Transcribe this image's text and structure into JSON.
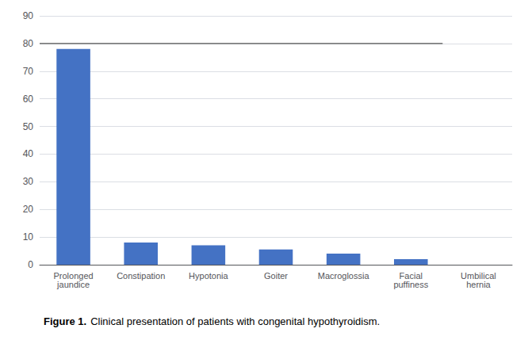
{
  "chart_data": {
    "type": "bar",
    "title": "Figure 1.",
    "subtitle": "Clinical presentation of patients with congenital hypothyroidism.",
    "categories": [
      "Prolonged\njaundice",
      "Constipation",
      "Hypotonia",
      "Goiter",
      "Macroglossia",
      "Facial\npuffiness",
      "Umbilical\nhernia"
    ],
    "values": [
      78,
      8,
      7,
      5.5,
      4,
      2,
      0
    ],
    "color": "#4472C4",
    "ylim": [
      0,
      90
    ],
    "yticks": [
      0,
      10,
      20,
      30,
      40,
      50,
      60,
      70,
      80,
      90
    ],
    "grid": true,
    "hline": {
      "y": 80,
      "color": "#555555"
    }
  }
}
